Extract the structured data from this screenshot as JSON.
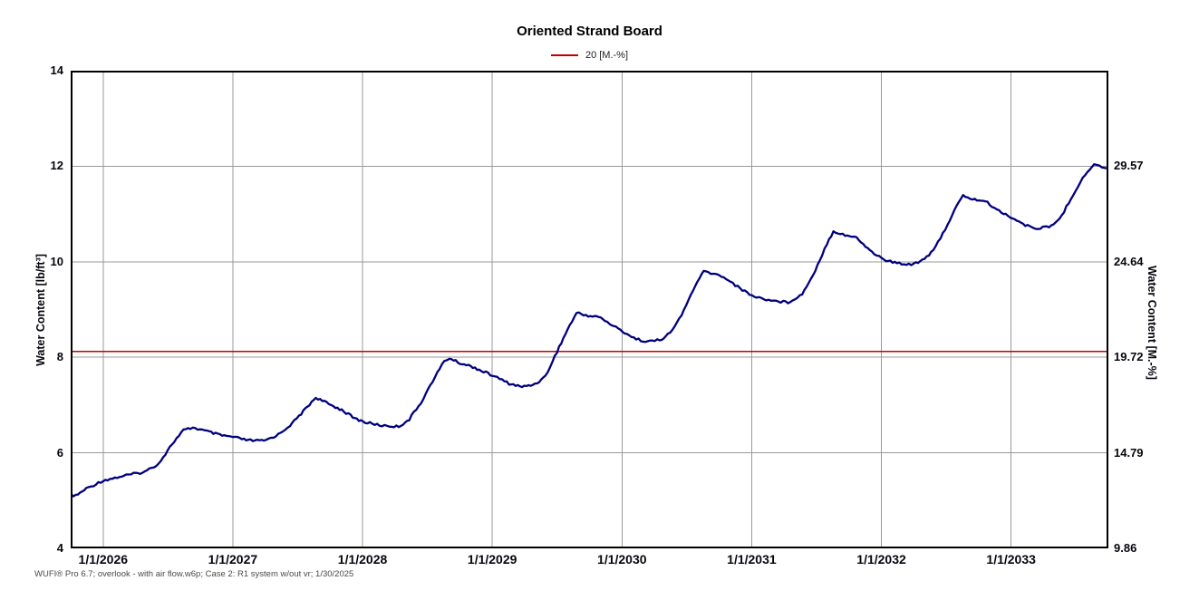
{
  "title": "Oriented Strand Board",
  "legend": {
    "label": "20 [M.-%]",
    "color": "#c00000"
  },
  "footer": "WUFI® Pro 6.7; overlook - with air flow.w6p; Case 2: R1 system w/out vr; 1/30/2025",
  "colors": {
    "series": "#000080",
    "reference_line": "#c00000",
    "gridline": "#999999",
    "axis_frame": "#000000"
  },
  "chart_data": {
    "type": "line",
    "title": "Oriented Strand Board",
    "grid": true,
    "legend_position": "top-center",
    "x_axis": {
      "range": [
        2025.75,
        2033.75
      ],
      "grid_years": [
        2026,
        2027,
        2028,
        2029,
        2030,
        2031,
        2032,
        2033
      ],
      "ticks": [
        {
          "label": "1/1/2026",
          "year": 2026
        },
        {
          "label": "1/1/2027",
          "year": 2027
        },
        {
          "label": "1/1/2028",
          "year": 2028
        },
        {
          "label": "1/1/2029",
          "year": 2029
        },
        {
          "label": "1/1/2030",
          "year": 2030
        },
        {
          "label": "1/1/2031",
          "year": 2031
        },
        {
          "label": "1/1/2032",
          "year": 2032
        },
        {
          "label": "1/1/2033",
          "year": 2033
        }
      ]
    },
    "y_left": {
      "label": "Water Content [lb/ft³]",
      "range": [
        4,
        14
      ],
      "ticks": [
        {
          "label": "14",
          "at": 14
        },
        {
          "label": "12",
          "at": 12
        },
        {
          "label": "10",
          "at": 10
        },
        {
          "label": "8",
          "at": 8
        },
        {
          "label": "6",
          "at": 6
        },
        {
          "label": "4",
          "at": 4
        }
      ],
      "grid_values": [
        6,
        8,
        10,
        12
      ]
    },
    "y_right": {
      "label": "Water Content [M.-%]",
      "conversion_factor_from_left": 2.4643,
      "ticks": [
        {
          "label": "29.57",
          "at": 12
        },
        {
          "label": "24.64",
          "at": 10
        },
        {
          "label": "19.72",
          "at": 8
        },
        {
          "label": "14.79",
          "at": 6
        },
        {
          "label": "9.86",
          "at": 4
        }
      ]
    },
    "reference_line": {
      "label": "20 [M.-%]",
      "value_m_pct": 20,
      "value_lb_ft3": 8.12,
      "color": "#c00000"
    },
    "series": [
      {
        "name": "20 [M.-%] water content curve",
        "color": "#000080",
        "points": [
          [
            2025.75,
            5.12
          ],
          [
            2025.79,
            5.1
          ],
          [
            2025.87,
            5.25
          ],
          [
            2026.0,
            5.42
          ],
          [
            2026.18,
            5.53
          ],
          [
            2026.32,
            5.6
          ],
          [
            2026.43,
            5.78
          ],
          [
            2026.53,
            6.18
          ],
          [
            2026.62,
            6.47
          ],
          [
            2026.69,
            6.53
          ],
          [
            2026.8,
            6.45
          ],
          [
            2026.9,
            6.37
          ],
          [
            2027.0,
            6.33
          ],
          [
            2027.12,
            6.26
          ],
          [
            2027.24,
            6.25
          ],
          [
            2027.35,
            6.38
          ],
          [
            2027.46,
            6.62
          ],
          [
            2027.56,
            6.92
          ],
          [
            2027.64,
            7.16
          ],
          [
            2027.74,
            7.02
          ],
          [
            2027.84,
            6.9
          ],
          [
            2027.94,
            6.72
          ],
          [
            2028.02,
            6.64
          ],
          [
            2028.15,
            6.57
          ],
          [
            2028.28,
            6.55
          ],
          [
            2028.36,
            6.7
          ],
          [
            2028.45,
            7.05
          ],
          [
            2028.54,
            7.5
          ],
          [
            2028.63,
            7.92
          ],
          [
            2028.67,
            7.98
          ],
          [
            2028.75,
            7.88
          ],
          [
            2028.85,
            7.8
          ],
          [
            2028.95,
            7.68
          ],
          [
            2029.02,
            7.6
          ],
          [
            2029.13,
            7.45
          ],
          [
            2029.23,
            7.38
          ],
          [
            2029.33,
            7.44
          ],
          [
            2029.41,
            7.6
          ],
          [
            2029.5,
            8.12
          ],
          [
            2029.58,
            8.58
          ],
          [
            2029.65,
            8.93
          ],
          [
            2029.74,
            8.87
          ],
          [
            2029.82,
            8.85
          ],
          [
            2029.92,
            8.68
          ],
          [
            2030.02,
            8.52
          ],
          [
            2030.11,
            8.38
          ],
          [
            2030.2,
            8.33
          ],
          [
            2030.29,
            8.36
          ],
          [
            2030.37,
            8.5
          ],
          [
            2030.46,
            8.88
          ],
          [
            2030.55,
            9.42
          ],
          [
            2030.63,
            9.8
          ],
          [
            2030.72,
            9.74
          ],
          [
            2030.8,
            9.66
          ],
          [
            2030.91,
            9.44
          ],
          [
            2031.02,
            9.27
          ],
          [
            2031.15,
            9.19
          ],
          [
            2031.28,
            9.15
          ],
          [
            2031.39,
            9.32
          ],
          [
            2031.49,
            9.82
          ],
          [
            2031.58,
            10.38
          ],
          [
            2031.63,
            10.64
          ],
          [
            2031.72,
            10.56
          ],
          [
            2031.81,
            10.5
          ],
          [
            2031.91,
            10.24
          ],
          [
            2032.02,
            10.04
          ],
          [
            2032.12,
            9.97
          ],
          [
            2032.23,
            9.95
          ],
          [
            2032.3,
            10.01
          ],
          [
            2032.4,
            10.22
          ],
          [
            2032.51,
            10.78
          ],
          [
            2032.58,
            11.16
          ],
          [
            2032.63,
            11.38
          ],
          [
            2032.72,
            11.3
          ],
          [
            2032.8,
            11.27
          ],
          [
            2032.89,
            11.09
          ],
          [
            2033.01,
            10.92
          ],
          [
            2033.11,
            10.76
          ],
          [
            2033.21,
            10.7
          ],
          [
            2033.31,
            10.74
          ],
          [
            2033.39,
            10.96
          ],
          [
            2033.48,
            11.42
          ],
          [
            2033.57,
            11.82
          ],
          [
            2033.64,
            12.05
          ],
          [
            2033.7,
            11.98
          ],
          [
            2033.74,
            11.94
          ]
        ]
      }
    ]
  }
}
